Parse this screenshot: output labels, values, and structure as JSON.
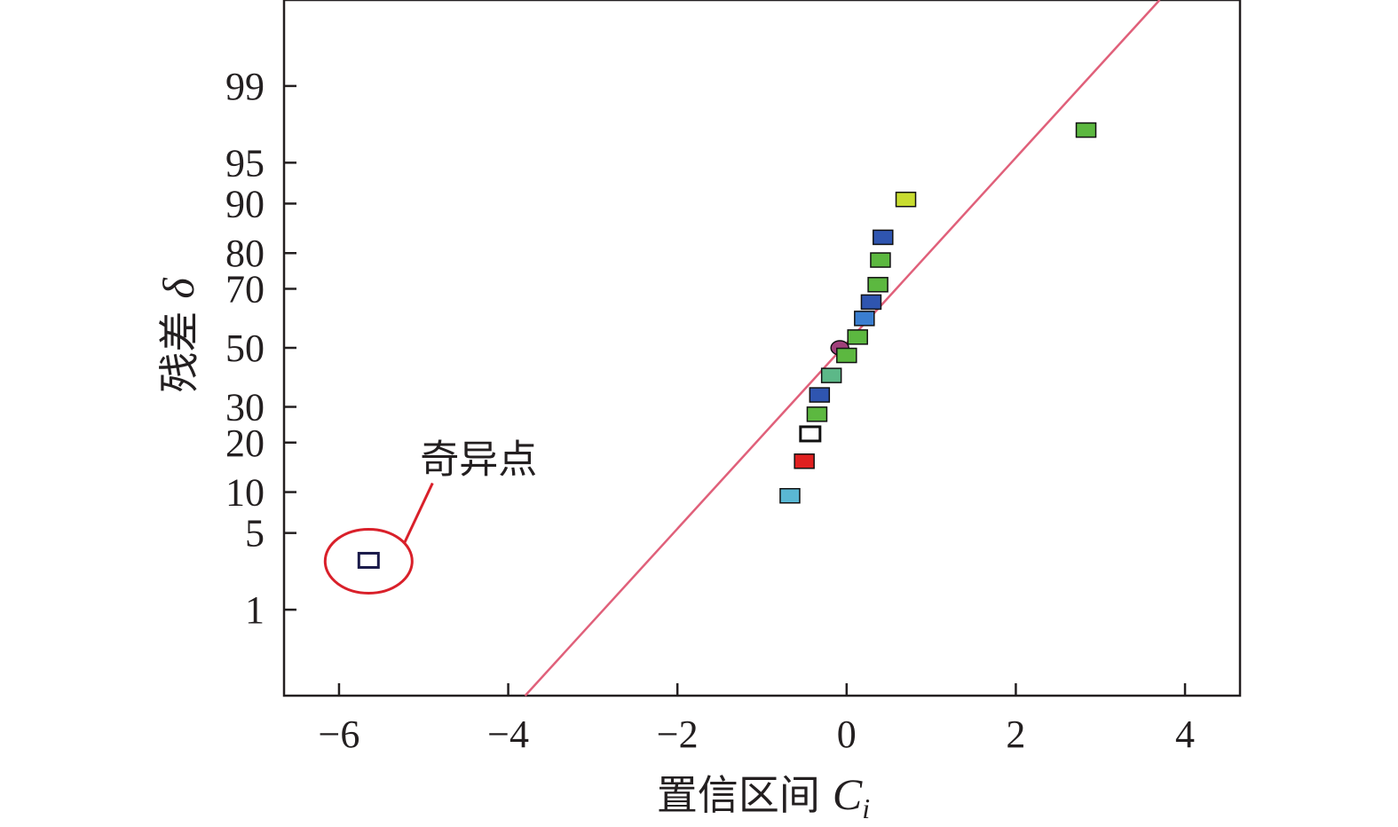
{
  "chart_data": {
    "type": "scatter",
    "title": "",
    "xlabel": "置信区间",
    "xlabel_var": "C",
    "xlabel_sub": "i",
    "ylabel": "残差",
    "ylabel_var": "δ",
    "x_scale": "linear",
    "y_scale": "normal-probability",
    "xlim": [
      -6.65,
      4.65
    ],
    "ylim": [
      0.1,
      99.9
    ],
    "x_ticks": [
      -6,
      -4,
      -2,
      0,
      2,
      4
    ],
    "x_tick_labels": [
      "−6",
      "−4",
      "−2",
      "0",
      "2",
      "4"
    ],
    "y_ticks": [
      1,
      5,
      10,
      20,
      30,
      50,
      70,
      80,
      90,
      95,
      99
    ],
    "y_tick_labels": [
      "1",
      "5",
      "10",
      "20",
      "30",
      "50",
      "70",
      "80",
      "90",
      "95",
      "99"
    ],
    "grid": false,
    "reference_line": {
      "color": "#e0607a",
      "points": [
        [
          -3.8,
          0.1
        ],
        [
          3.7,
          99.9
        ]
      ]
    },
    "points": [
      {
        "x": -5.65,
        "y": 2.9,
        "color": "#ffffff",
        "border": "#1a1a4a",
        "shape": "square",
        "outlier": true
      },
      {
        "x": -0.67,
        "y": 9.3,
        "color": "#5ab8d4",
        "shape": "square"
      },
      {
        "x": -0.5,
        "y": 15.5,
        "color": "#e02020",
        "shape": "square"
      },
      {
        "x": -0.43,
        "y": 22.0,
        "color": "#ffffff",
        "border": "#111111",
        "shape": "square"
      },
      {
        "x": -0.35,
        "y": 27.5,
        "color": "#5cb840",
        "shape": "square"
      },
      {
        "x": -0.32,
        "y": 33.5,
        "color": "#2f55b0",
        "shape": "square"
      },
      {
        "x": -0.18,
        "y": 40.0,
        "color": "#5cb888",
        "shape": "square"
      },
      {
        "x": -0.08,
        "y": 50.0,
        "color": "#a0407a",
        "shape": "circle"
      },
      {
        "x": 0.0,
        "y": 47.0,
        "color": "#5cb840",
        "shape": "square"
      },
      {
        "x": 0.13,
        "y": 53.5,
        "color": "#5cb840",
        "shape": "square"
      },
      {
        "x": 0.21,
        "y": 60.0,
        "color": "#3a7ed0",
        "shape": "square"
      },
      {
        "x": 0.29,
        "y": 65.5,
        "color": "#2f55b0",
        "shape": "square"
      },
      {
        "x": 0.37,
        "y": 71.0,
        "color": "#5cb840",
        "shape": "square"
      },
      {
        "x": 0.4,
        "y": 78.0,
        "color": "#5cb840",
        "shape": "square"
      },
      {
        "x": 0.43,
        "y": 83.5,
        "color": "#2f55b0",
        "shape": "square"
      },
      {
        "x": 0.7,
        "y": 90.5,
        "color": "#c8dc30",
        "shape": "square"
      },
      {
        "x": 2.83,
        "y": 97.3,
        "color": "#5cb840",
        "shape": "square"
      }
    ],
    "annotations": [
      {
        "text": "奇异点",
        "target_index": 0,
        "color": "#d9202a"
      }
    ]
  }
}
